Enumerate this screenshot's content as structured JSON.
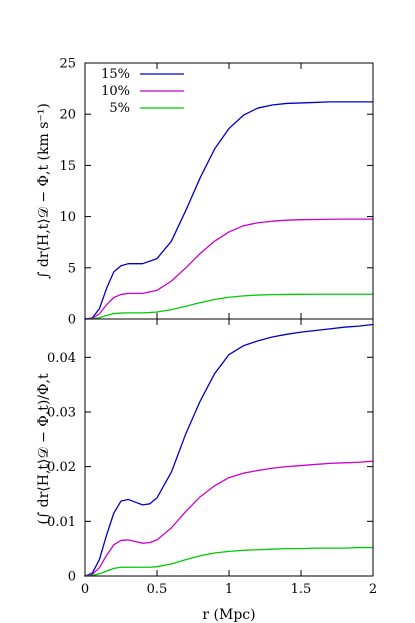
{
  "chart_data": [
    {
      "type": "line",
      "panel": "top",
      "xlabel": "",
      "ylabel": "∫ dr⟨H,t⟩𝒟 − Φ,t (km s⁻¹)",
      "xlim": [
        0,
        2
      ],
      "ylim": [
        0,
        25
      ],
      "x_ticks": [
        0,
        0.5,
        1,
        1.5,
        2
      ],
      "y_ticks": [
        0,
        5,
        10,
        15,
        20,
        25
      ],
      "y_tick_labels": [
        "0",
        "5",
        "10",
        "15",
        "20",
        "25"
      ],
      "grid": false,
      "legend_position": "top-left",
      "series": [
        {
          "name": "15%",
          "color": "#0000cc",
          "x": [
            0,
            0.05,
            0.1,
            0.15,
            0.2,
            0.25,
            0.3,
            0.35,
            0.4,
            0.5,
            0.6,
            0.7,
            0.8,
            0.9,
            1.0,
            1.1,
            1.2,
            1.3,
            1.4,
            1.5,
            1.6,
            1.7,
            1.8,
            1.9,
            2.0
          ],
          "values": [
            0,
            0.1,
            1.0,
            3.0,
            4.6,
            5.2,
            5.4,
            5.4,
            5.4,
            5.9,
            7.6,
            10.6,
            13.8,
            16.6,
            18.6,
            19.9,
            20.6,
            20.9,
            21.05,
            21.1,
            21.15,
            21.2,
            21.2,
            21.2,
            21.2
          ]
        },
        {
          "name": "10%",
          "color": "#cc00cc",
          "x": [
            0,
            0.05,
            0.1,
            0.15,
            0.2,
            0.25,
            0.3,
            0.35,
            0.4,
            0.5,
            0.6,
            0.7,
            0.8,
            0.9,
            1.0,
            1.1,
            1.2,
            1.3,
            1.4,
            1.5,
            1.6,
            1.7,
            1.8,
            1.9,
            2.0
          ],
          "values": [
            0,
            0.05,
            0.5,
            1.4,
            2.1,
            2.4,
            2.5,
            2.5,
            2.5,
            2.8,
            3.7,
            5.0,
            6.4,
            7.6,
            8.5,
            9.1,
            9.4,
            9.55,
            9.65,
            9.7,
            9.72,
            9.74,
            9.75,
            9.75,
            9.75
          ]
        },
        {
          "name": "5%",
          "color": "#00cc00",
          "x": [
            0,
            0.05,
            0.1,
            0.15,
            0.2,
            0.25,
            0.3,
            0.35,
            0.4,
            0.5,
            0.6,
            0.7,
            0.8,
            0.9,
            1.0,
            1.1,
            1.2,
            1.3,
            1.4,
            1.5,
            1.6,
            1.7,
            1.8,
            1.9,
            2.0
          ],
          "values": [
            0,
            0.01,
            0.12,
            0.35,
            0.52,
            0.58,
            0.6,
            0.6,
            0.6,
            0.68,
            0.92,
            1.25,
            1.6,
            1.9,
            2.12,
            2.26,
            2.34,
            2.38,
            2.4,
            2.41,
            2.42,
            2.42,
            2.42,
            2.42,
            2.42
          ]
        }
      ]
    },
    {
      "type": "line",
      "panel": "bottom",
      "xlabel": "r (Mpc)",
      "ylabel": "(∫ dr⟨H,t⟩𝒟 − Φ,t)/Φ,t",
      "xlim": [
        0,
        2
      ],
      "ylim": [
        0,
        0.047
      ],
      "x_ticks": [
        0,
        0.5,
        1,
        1.5,
        2
      ],
      "x_tick_labels": [
        "0",
        "0.5",
        "1",
        "1.5",
        "2"
      ],
      "y_ticks": [
        0,
        0.01,
        0.02,
        0.03,
        0.04
      ],
      "y_tick_labels": [
        "0",
        "0.01",
        "0.02",
        "0.03",
        "0.04"
      ],
      "grid": false,
      "series": [
        {
          "name": "15%",
          "color": "#0000cc",
          "x": [
            0,
            0.05,
            0.1,
            0.15,
            0.2,
            0.25,
            0.3,
            0.35,
            0.4,
            0.45,
            0.5,
            0.6,
            0.7,
            0.8,
            0.9,
            1.0,
            1.1,
            1.2,
            1.3,
            1.4,
            1.5,
            1.6,
            1.7,
            1.8,
            1.9,
            2.0
          ],
          "values": [
            0,
            0.0005,
            0.003,
            0.0075,
            0.0115,
            0.0137,
            0.014,
            0.0135,
            0.013,
            0.0132,
            0.0143,
            0.019,
            0.026,
            0.032,
            0.037,
            0.0405,
            0.0421,
            0.043,
            0.0437,
            0.0442,
            0.0446,
            0.0449,
            0.0452,
            0.0455,
            0.0457,
            0.046
          ]
        },
        {
          "name": "10%",
          "color": "#cc00cc",
          "x": [
            0,
            0.05,
            0.1,
            0.15,
            0.2,
            0.25,
            0.3,
            0.35,
            0.4,
            0.45,
            0.5,
            0.6,
            0.7,
            0.8,
            0.9,
            1.0,
            1.1,
            1.2,
            1.3,
            1.4,
            1.5,
            1.6,
            1.7,
            1.8,
            1.9,
            2.0
          ],
          "values": [
            0,
            0.0003,
            0.0015,
            0.0038,
            0.0057,
            0.0065,
            0.0066,
            0.0063,
            0.006,
            0.0061,
            0.0066,
            0.0088,
            0.0118,
            0.0145,
            0.0165,
            0.018,
            0.0188,
            0.0193,
            0.0197,
            0.02,
            0.0202,
            0.0204,
            0.0206,
            0.0207,
            0.0208,
            0.021
          ]
        },
        {
          "name": "5%",
          "color": "#00cc00",
          "x": [
            0,
            0.05,
            0.1,
            0.15,
            0.2,
            0.25,
            0.3,
            0.35,
            0.4,
            0.45,
            0.5,
            0.6,
            0.7,
            0.8,
            0.9,
            1.0,
            1.1,
            1.2,
            1.3,
            1.4,
            1.5,
            1.6,
            1.7,
            1.8,
            1.9,
            2.0
          ],
          "values": [
            0,
            0.0001,
            0.0004,
            0.0009,
            0.0014,
            0.0016,
            0.0016,
            0.0016,
            0.0016,
            0.0016,
            0.0017,
            0.0022,
            0.003,
            0.0037,
            0.0042,
            0.0045,
            0.0047,
            0.0048,
            0.0049,
            0.005,
            0.005,
            0.0051,
            0.0051,
            0.0051,
            0.0052,
            0.0052
          ]
        }
      ]
    }
  ]
}
